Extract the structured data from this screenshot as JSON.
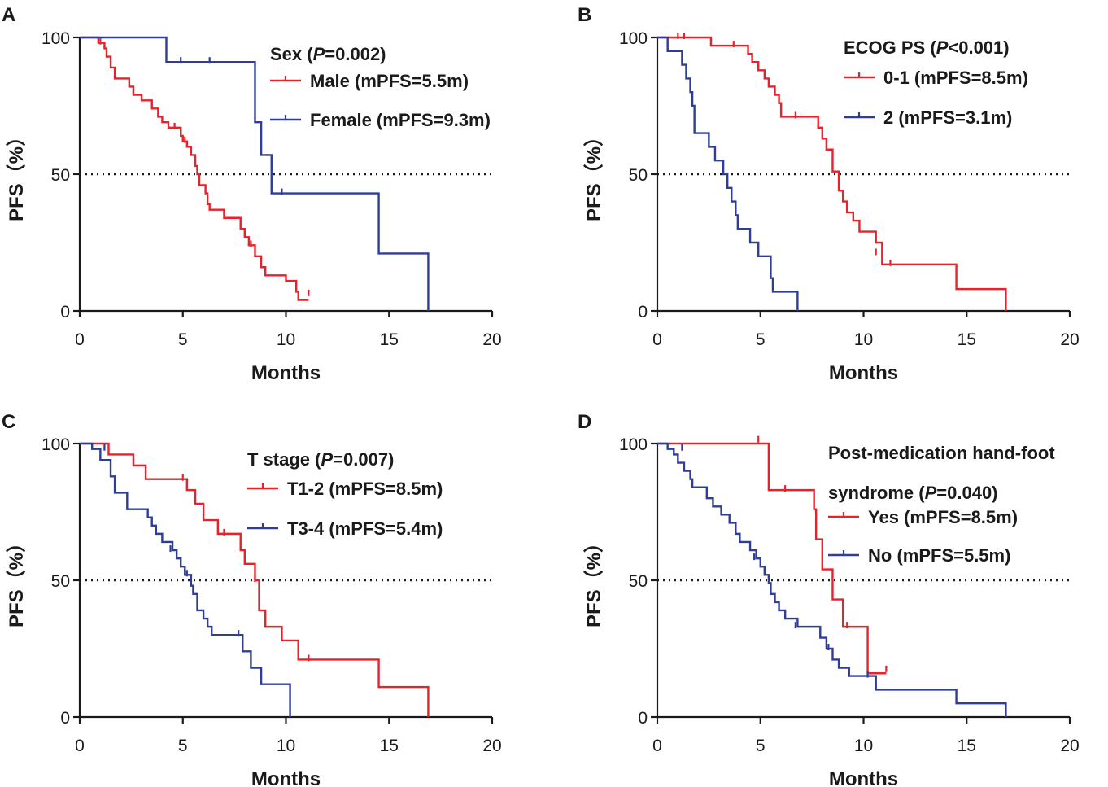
{
  "colors": {
    "series1": "#e8222b",
    "series2": "#2e3d97",
    "axis": "#1a1a1a"
  },
  "chart_data": [
    {
      "type": "line",
      "subtype": "kaplan-meier",
      "panel": "A",
      "xlabel": "Months",
      "ylabel": "PFS（%）",
      "xlim": [
        0,
        20
      ],
      "ylim": [
        0,
        100
      ],
      "xticks": [
        "0",
        "5",
        "10",
        "15",
        "20"
      ],
      "yticks": [
        "0",
        "50",
        "100"
      ],
      "reference_line": 50,
      "legend_title": {
        "prefix": "Sex (",
        "italic": "P",
        "suffix": "=0.002)"
      },
      "legend_extra_line": null,
      "series": [
        {
          "name": "Male (mPFS=5.5m)",
          "color": "#e8222b",
          "steps": [
            [
              0,
              100
            ],
            [
              0.9,
              98
            ],
            [
              1.2,
              96
            ],
            [
              1.3,
              93
            ],
            [
              1.5,
              89
            ],
            [
              1.7,
              85
            ],
            [
              2.4,
              82
            ],
            [
              2.6,
              79
            ],
            [
              3.0,
              77
            ],
            [
              3.5,
              74
            ],
            [
              3.8,
              71
            ],
            [
              4.0,
              69
            ],
            [
              4.3,
              67
            ],
            [
              4.9,
              64
            ],
            [
              5.0,
              62
            ],
            [
              5.2,
              60
            ],
            [
              5.4,
              57
            ],
            [
              5.6,
              53
            ],
            [
              5.7,
              50
            ],
            [
              5.8,
              46
            ],
            [
              6.1,
              43
            ],
            [
              6.2,
              39
            ],
            [
              6.3,
              37
            ],
            [
              7.0,
              34
            ],
            [
              7.8,
              30
            ],
            [
              8.0,
              27
            ],
            [
              8.2,
              24
            ],
            [
              8.5,
              20
            ],
            [
              8.8,
              16
            ],
            [
              9.0,
              13
            ],
            [
              10.0,
              11
            ],
            [
              10.5,
              7
            ],
            [
              10.6,
              4
            ],
            [
              11.1,
              4
            ]
          ],
          "censor": [
            [
              1.0,
              98
            ],
            [
              4.6,
              67
            ],
            [
              5.1,
              62
            ],
            [
              8.3,
              24
            ],
            [
              11.1,
              6
            ]
          ]
        },
        {
          "name": "Female (mPFS=9.3m)",
          "color": "#2e3d97",
          "steps": [
            [
              0,
              100
            ],
            [
              4.2,
              91
            ],
            [
              8.5,
              69
            ],
            [
              8.8,
              57
            ],
            [
              9.3,
              43
            ],
            [
              14.5,
              21
            ],
            [
              16.9,
              0
            ]
          ],
          "censor": [
            [
              4.9,
              91
            ],
            [
              6.3,
              91
            ],
            [
              9.8,
              43
            ]
          ]
        }
      ]
    },
    {
      "type": "line",
      "subtype": "kaplan-meier",
      "panel": "B",
      "xlabel": "Months",
      "ylabel": "PFS（%）",
      "xlim": [
        0,
        20
      ],
      "ylim": [
        0,
        100
      ],
      "xticks": [
        "0",
        "5",
        "10",
        "15",
        "20"
      ],
      "yticks": [
        "0",
        "50",
        "100"
      ],
      "reference_line": 50,
      "legend_title": {
        "prefix": "ECOG PS (",
        "italic": "P",
        "suffix": "<0.001)"
      },
      "legend_extra_line": null,
      "series": [
        {
          "name": "0-1 (mPFS=8.5m)",
          "color": "#e8222b",
          "steps": [
            [
              0,
              100
            ],
            [
              2.6,
              97
            ],
            [
              4.4,
              94
            ],
            [
              4.6,
              91
            ],
            [
              4.9,
              88
            ],
            [
              5.2,
              85
            ],
            [
              5.4,
              82
            ],
            [
              5.7,
              79
            ],
            [
              5.9,
              76
            ],
            [
              6.0,
              71
            ],
            [
              7.8,
              67
            ],
            [
              8.0,
              63
            ],
            [
              8.2,
              59
            ],
            [
              8.5,
              51
            ],
            [
              8.8,
              44
            ],
            [
              9.0,
              40
            ],
            [
              9.2,
              36
            ],
            [
              9.5,
              33
            ],
            [
              9.8,
              29
            ],
            [
              10.6,
              25
            ],
            [
              10.9,
              17
            ],
            [
              14.5,
              8
            ],
            [
              16.9,
              0
            ]
          ],
          "censor": [
            [
              1.0,
              100
            ],
            [
              1.3,
              100
            ],
            [
              3.7,
              97
            ],
            [
              6.7,
              71
            ],
            [
              10.6,
              21
            ],
            [
              11.3,
              17
            ]
          ]
        },
        {
          "name": "2 (mPFS=3.1m)",
          "color": "#2e3d97",
          "steps": [
            [
              0,
              100
            ],
            [
              0.5,
              95
            ],
            [
              1.2,
              90
            ],
            [
              1.4,
              85
            ],
            [
              1.6,
              80
            ],
            [
              1.7,
              75
            ],
            [
              1.8,
              65
            ],
            [
              2.5,
              60
            ],
            [
              2.8,
              55
            ],
            [
              3.2,
              50
            ],
            [
              3.4,
              45
            ],
            [
              3.6,
              40
            ],
            [
              3.8,
              35
            ],
            [
              3.9,
              30
            ],
            [
              4.5,
              25
            ],
            [
              4.9,
              20
            ],
            [
              5.5,
              12
            ],
            [
              5.6,
              7
            ],
            [
              6.8,
              0
            ]
          ],
          "censor": []
        }
      ]
    },
    {
      "type": "line",
      "subtype": "kaplan-meier",
      "panel": "C",
      "xlabel": "Months",
      "ylabel": "PFS（%）",
      "xlim": [
        0,
        20
      ],
      "ylim": [
        0,
        100
      ],
      "xticks": [
        "0",
        "5",
        "10",
        "15",
        "20"
      ],
      "yticks": [
        "0",
        "50",
        "100"
      ],
      "reference_line": 50,
      "legend_title": {
        "prefix": "T stage (",
        "italic": "P",
        "suffix": "=0.007)"
      },
      "legend_extra_line": null,
      "series": [
        {
          "name": "T1-2 (mPFS=8.5m)",
          "color": "#e8222b",
          "steps": [
            [
              0,
              100
            ],
            [
              1.4,
              96
            ],
            [
              2.6,
              92
            ],
            [
              3.2,
              87
            ],
            [
              5.2,
              83
            ],
            [
              5.6,
              78
            ],
            [
              6.0,
              72
            ],
            [
              6.7,
              67
            ],
            [
              7.8,
              61
            ],
            [
              8.0,
              56
            ],
            [
              8.5,
              50
            ],
            [
              8.7,
              39
            ],
            [
              9.0,
              33
            ],
            [
              9.8,
              28
            ],
            [
              10.6,
              21
            ],
            [
              14.5,
              11
            ],
            [
              16.9,
              0
            ]
          ],
          "censor": [
            [
              5.0,
              87
            ],
            [
              7.0,
              67
            ],
            [
              8.5,
              50
            ],
            [
              11.1,
              21
            ]
          ]
        },
        {
          "name": "T3-4 (mPFS=5.4m)",
          "color": "#2e3d97",
          "steps": [
            [
              0,
              100
            ],
            [
              0.6,
              98
            ],
            [
              1.0,
              94
            ],
            [
              1.5,
              88
            ],
            [
              1.7,
              82
            ],
            [
              2.3,
              76
            ],
            [
              3.3,
              73
            ],
            [
              3.5,
              70
            ],
            [
              3.7,
              67
            ],
            [
              4.0,
              64
            ],
            [
              4.5,
              61
            ],
            [
              4.7,
              58
            ],
            [
              4.9,
              55
            ],
            [
              5.1,
              52
            ],
            [
              5.4,
              48
            ],
            [
              5.5,
              45
            ],
            [
              5.7,
              39
            ],
            [
              6.0,
              36
            ],
            [
              6.2,
              33
            ],
            [
              6.4,
              30
            ],
            [
              7.9,
              24
            ],
            [
              8.3,
              18
            ],
            [
              8.8,
              12
            ],
            [
              10.2,
              0
            ]
          ],
          "censor": [
            [
              1.2,
              98
            ],
            [
              4.4,
              61
            ],
            [
              5.2,
              52
            ],
            [
              7.7,
              30
            ]
          ]
        }
      ]
    },
    {
      "type": "line",
      "subtype": "kaplan-meier",
      "panel": "D",
      "xlabel": "Months",
      "ylabel": "PFS（%）",
      "xlim": [
        0,
        20
      ],
      "ylim": [
        0,
        100
      ],
      "xticks": [
        "0",
        "5",
        "10",
        "15",
        "20"
      ],
      "yticks": [
        "0",
        "50",
        "100"
      ],
      "reference_line": 50,
      "legend_title": {
        "prefix": "syndrome (",
        "italic": "P",
        "suffix": "=0.040)"
      },
      "legend_extra_line": "Post-medication hand-foot",
      "series": [
        {
          "name": "Yes (mPFS=8.5m)",
          "color": "#e8222b",
          "steps": [
            [
              0,
              100
            ],
            [
              5.4,
              83
            ],
            [
              7.6,
              76
            ],
            [
              7.7,
              65
            ],
            [
              8.0,
              54
            ],
            [
              8.5,
              43
            ],
            [
              9.0,
              33
            ],
            [
              10.2,
              16
            ],
            [
              11.1,
              16
            ]
          ],
          "censor": [
            [
              4.9,
              101
            ],
            [
              6.2,
              83
            ],
            [
              9.2,
              33
            ],
            [
              11.1,
              17
            ]
          ]
        },
        {
          "name": "No (mPFS=5.5m)",
          "color": "#2e3d97",
          "steps": [
            [
              0,
              100
            ],
            [
              0.5,
              98
            ],
            [
              0.8,
              96
            ],
            [
              1.0,
              93
            ],
            [
              1.3,
              90
            ],
            [
              1.6,
              87
            ],
            [
              1.7,
              84
            ],
            [
              2.4,
              80
            ],
            [
              2.7,
              77
            ],
            [
              3.1,
              74
            ],
            [
              3.5,
              71
            ],
            [
              3.8,
              67
            ],
            [
              4.0,
              64
            ],
            [
              4.5,
              61
            ],
            [
              4.8,
              58
            ],
            [
              5.0,
              55
            ],
            [
              5.2,
              52
            ],
            [
              5.4,
              49
            ],
            [
              5.5,
              45
            ],
            [
              5.7,
              42
            ],
            [
              5.9,
              39
            ],
            [
              6.2,
              36
            ],
            [
              6.8,
              33
            ],
            [
              7.9,
              29
            ],
            [
              8.2,
              25
            ],
            [
              8.5,
              21
            ],
            [
              8.8,
              18
            ],
            [
              9.3,
              15
            ],
            [
              10.6,
              10
            ],
            [
              14.5,
              5
            ],
            [
              16.9,
              0
            ]
          ],
          "censor": [
            [
              1.2,
              98
            ],
            [
              4.7,
              58
            ],
            [
              6.7,
              33
            ],
            [
              8.3,
              25
            ],
            [
              10.2,
              15
            ]
          ]
        }
      ]
    }
  ]
}
